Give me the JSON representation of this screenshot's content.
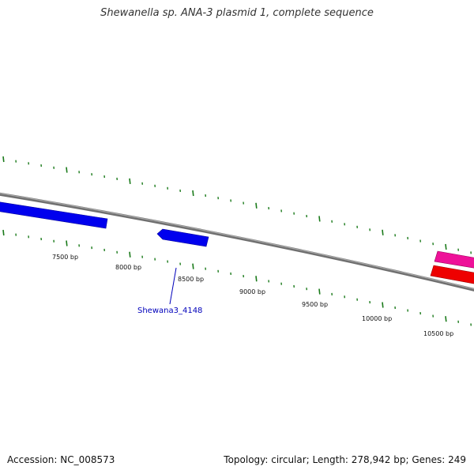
{
  "title": "Shewanella sp. ANA-3 plasmid 1, complete sequence",
  "footer": {
    "accession": "Accession: NC_008573",
    "info": "Topology: circular; Length: 278,942 bp; Genes: 249"
  },
  "colors": {
    "backbone": "#808080",
    "tick": "#1a7a1a",
    "gene_blue": "#0000ee",
    "gene_magenta": "#ee1199",
    "gene_red": "#ee0000",
    "label": "#0000bb"
  },
  "map": {
    "visible_range_bp": [
      6500,
      11500
    ],
    "tick_labels": [
      "7500 bp",
      "8000 bp",
      "8500 bp",
      "9000 bp",
      "9500 bp",
      "10000 bp",
      "10500 bp"
    ],
    "genes": [
      {
        "id": "gene-left-blue",
        "strand": "forward",
        "color": "blue"
      },
      {
        "id": "gene-shewana3-4148",
        "strand": "forward",
        "color": "blue",
        "label": "Shewana3_4148"
      },
      {
        "id": "gene-right-magenta",
        "strand": "reverse",
        "color": "magenta"
      },
      {
        "id": "gene-right-red",
        "strand": "forward",
        "color": "red"
      }
    ]
  }
}
